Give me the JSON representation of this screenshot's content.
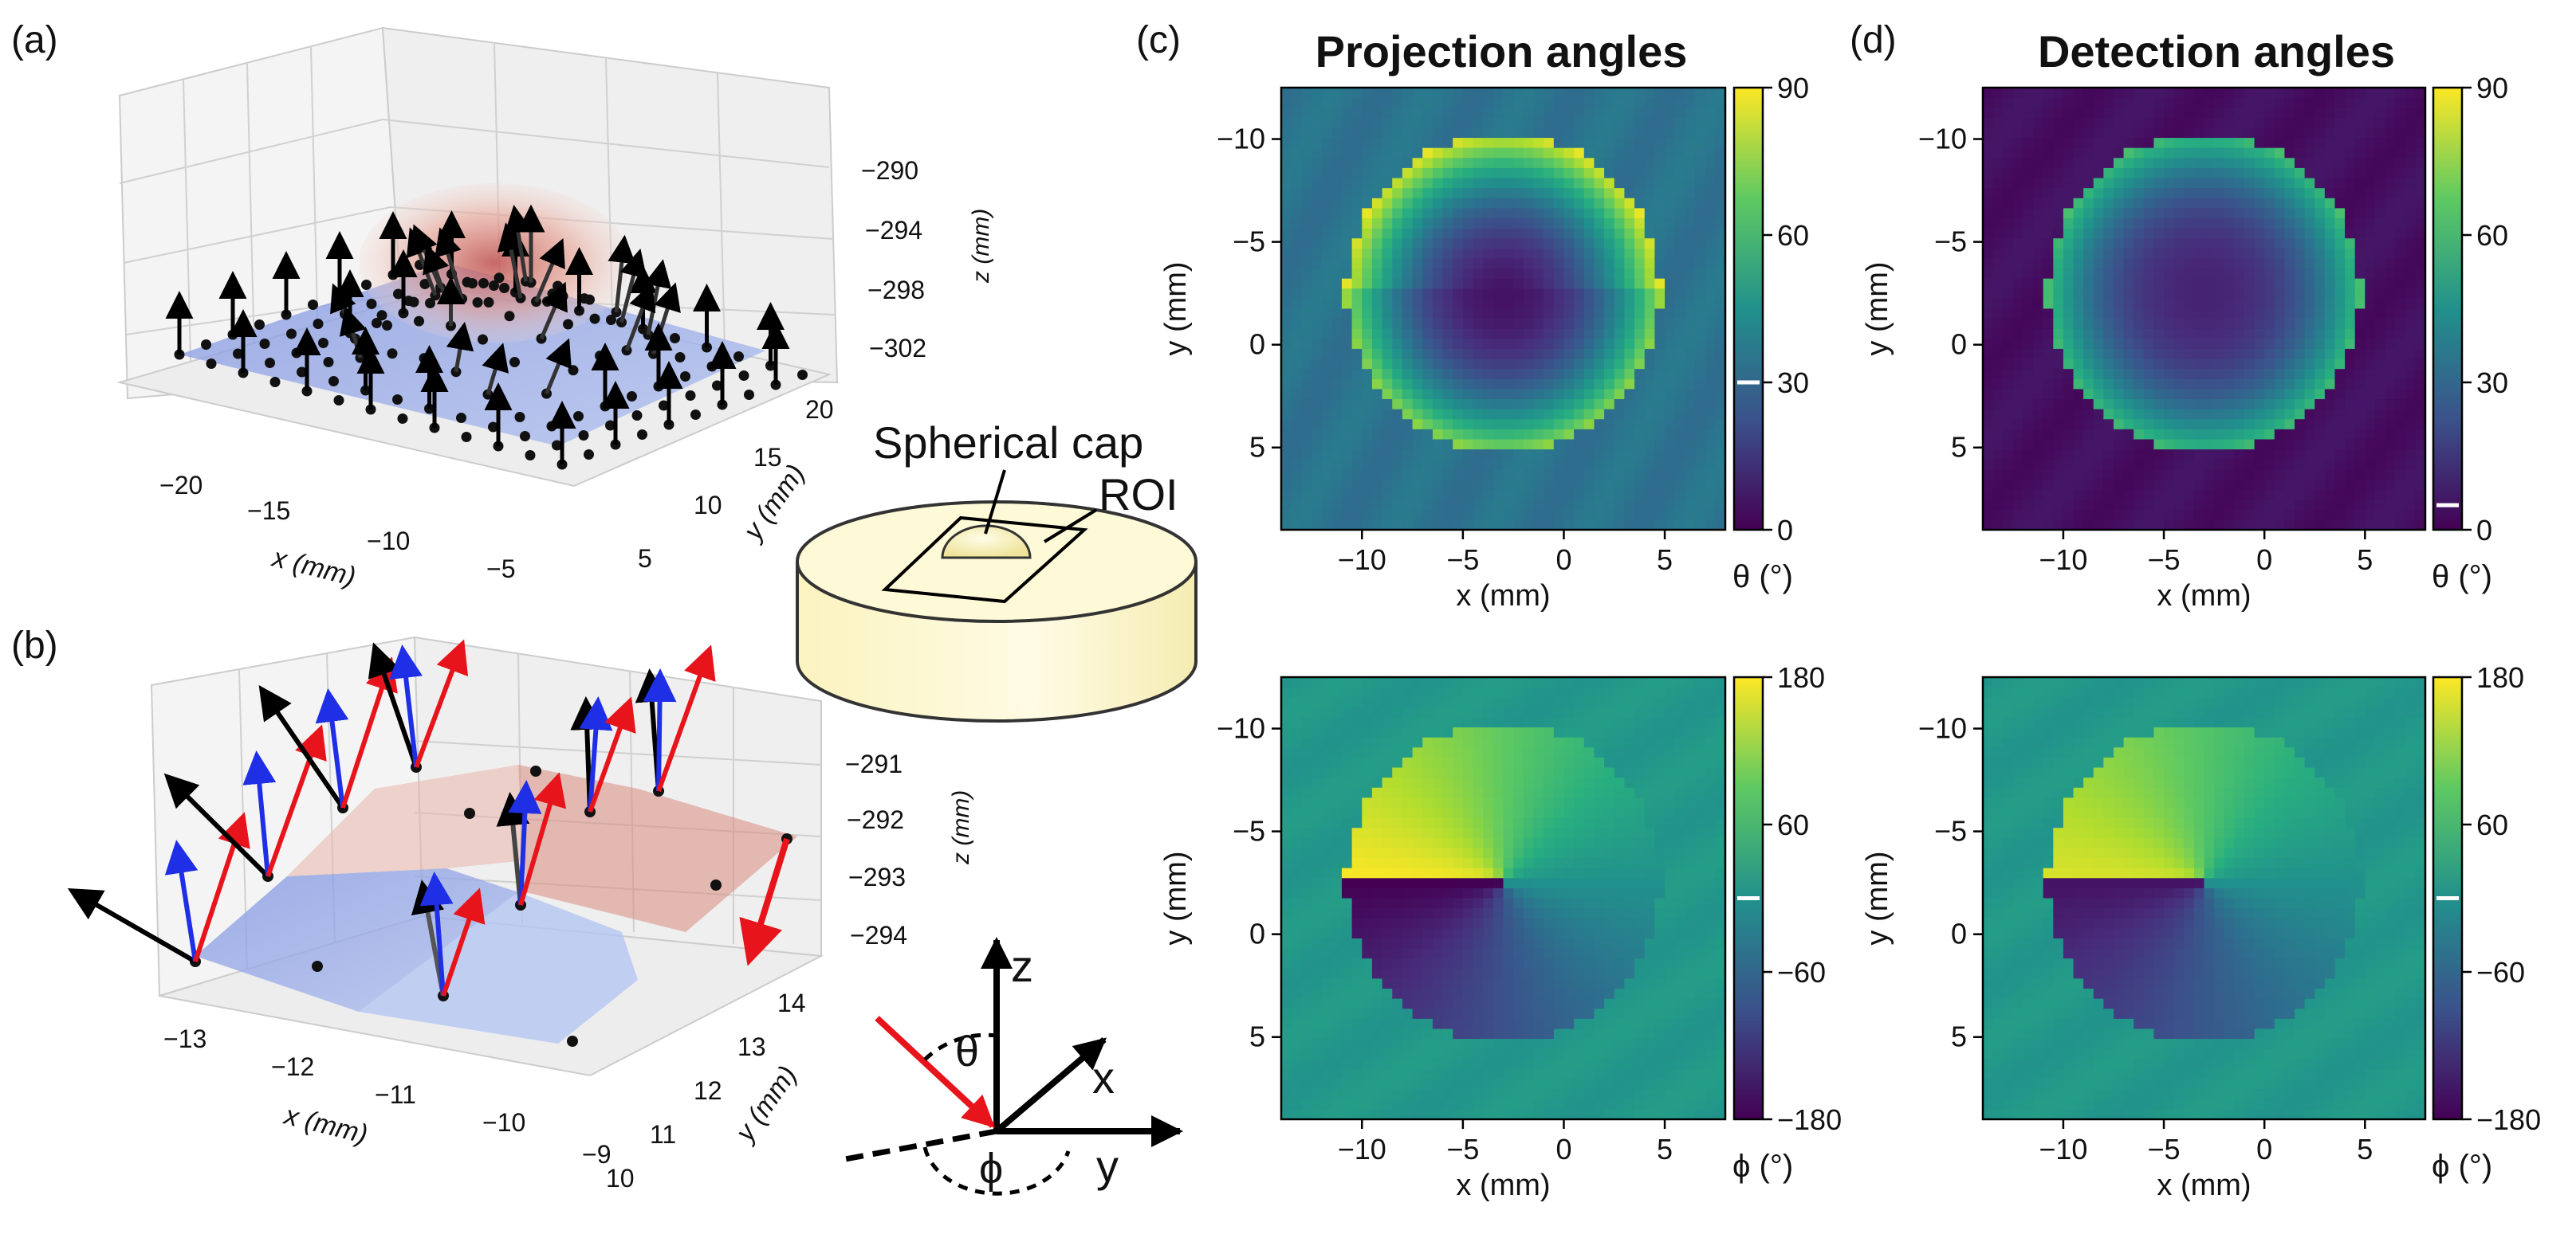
{
  "panels": {
    "a": {
      "label": "(a)",
      "xlabel": "x (mm)",
      "ylabel": "y (mm)",
      "zlabel": "z (mm)",
      "xticks": [
        "−20",
        "−15",
        "−10",
        "−5"
      ],
      "yticks": [
        "5",
        "10",
        "15",
        "20"
      ],
      "zticks": [
        "−290",
        "−294",
        "−298",
        "−302"
      ]
    },
    "b": {
      "label": "(b)",
      "xlabel": "x (mm)",
      "ylabel": "y (mm)",
      "zlabel": "z (mm)",
      "xticks": [
        "−13",
        "−12",
        "−11",
        "−10",
        "−9"
      ],
      "yticks": [
        "10",
        "11",
        "12",
        "13",
        "14"
      ],
      "zticks": [
        "−291",
        "−292",
        "−293",
        "−294"
      ]
    },
    "c": {
      "label": "(c)",
      "title": "Projection angles"
    },
    "d": {
      "label": "(d)",
      "title": "Detection angles"
    }
  },
  "phantom": {
    "cap_label": "Spherical cap",
    "roi_label": "ROI"
  },
  "axes_diagram": {
    "z": "z",
    "x": "x",
    "y": "y",
    "theta": "θ",
    "phi": "ϕ"
  },
  "chart_data": [
    {
      "id": "c-theta",
      "type": "heatmap",
      "title": "Projection angles",
      "xlabel": "x (mm)",
      "ylabel": "y (mm)",
      "xticks": [
        "−10",
        "−5",
        "0",
        "5"
      ],
      "yticks": [
        "−10",
        "−5",
        "0",
        "5"
      ],
      "xlim": [
        -14,
        8
      ],
      "ylim": [
        9,
        -12.5
      ],
      "colorbar": {
        "label": "θ (°)",
        "ticks": [
          "90",
          "60",
          "30",
          "0"
        ],
        "min": 0,
        "max": 90,
        "marker": 30
      }
    },
    {
      "id": "d-theta",
      "type": "heatmap",
      "title": "Detection angles",
      "xlabel": "x (mm)",
      "ylabel": "y (mm)",
      "xticks": [
        "−10",
        "−5",
        "0",
        "5"
      ],
      "yticks": [
        "−10",
        "−5",
        "0",
        "5"
      ],
      "xlim": [
        -14,
        8
      ],
      "ylim": [
        9,
        -12.5
      ],
      "colorbar": {
        "label": "θ (°)",
        "ticks": [
          "90",
          "60",
          "30",
          "0"
        ],
        "min": 0,
        "max": 90,
        "marker": 5
      }
    },
    {
      "id": "c-phi",
      "type": "heatmap",
      "xlabel": "x (mm)",
      "ylabel": "y (mm)",
      "xticks": [
        "−10",
        "−5",
        "0",
        "5"
      ],
      "yticks": [
        "−10",
        "−5",
        "0",
        "5"
      ],
      "xlim": [
        -14,
        8
      ],
      "ylim": [
        9,
        -12.5
      ],
      "colorbar": {
        "label": "ϕ (°)",
        "ticks": [
          "180",
          "60",
          "−60",
          "−180"
        ],
        "min": -180,
        "max": 180,
        "marker": 0
      }
    },
    {
      "id": "d-phi",
      "type": "heatmap",
      "xlabel": "x (mm)",
      "ylabel": "y (mm)",
      "xticks": [
        "−10",
        "−5",
        "0",
        "5"
      ],
      "yticks": [
        "−10",
        "−5",
        "0",
        "5"
      ],
      "xlim": [
        -14,
        8
      ],
      "ylim": [
        9,
        -12.5
      ],
      "colorbar": {
        "label": "ϕ (°)",
        "ticks": [
          "180",
          "60",
          "−60",
          "−180"
        ],
        "min": -180,
        "max": 180,
        "marker": 0
      }
    }
  ]
}
